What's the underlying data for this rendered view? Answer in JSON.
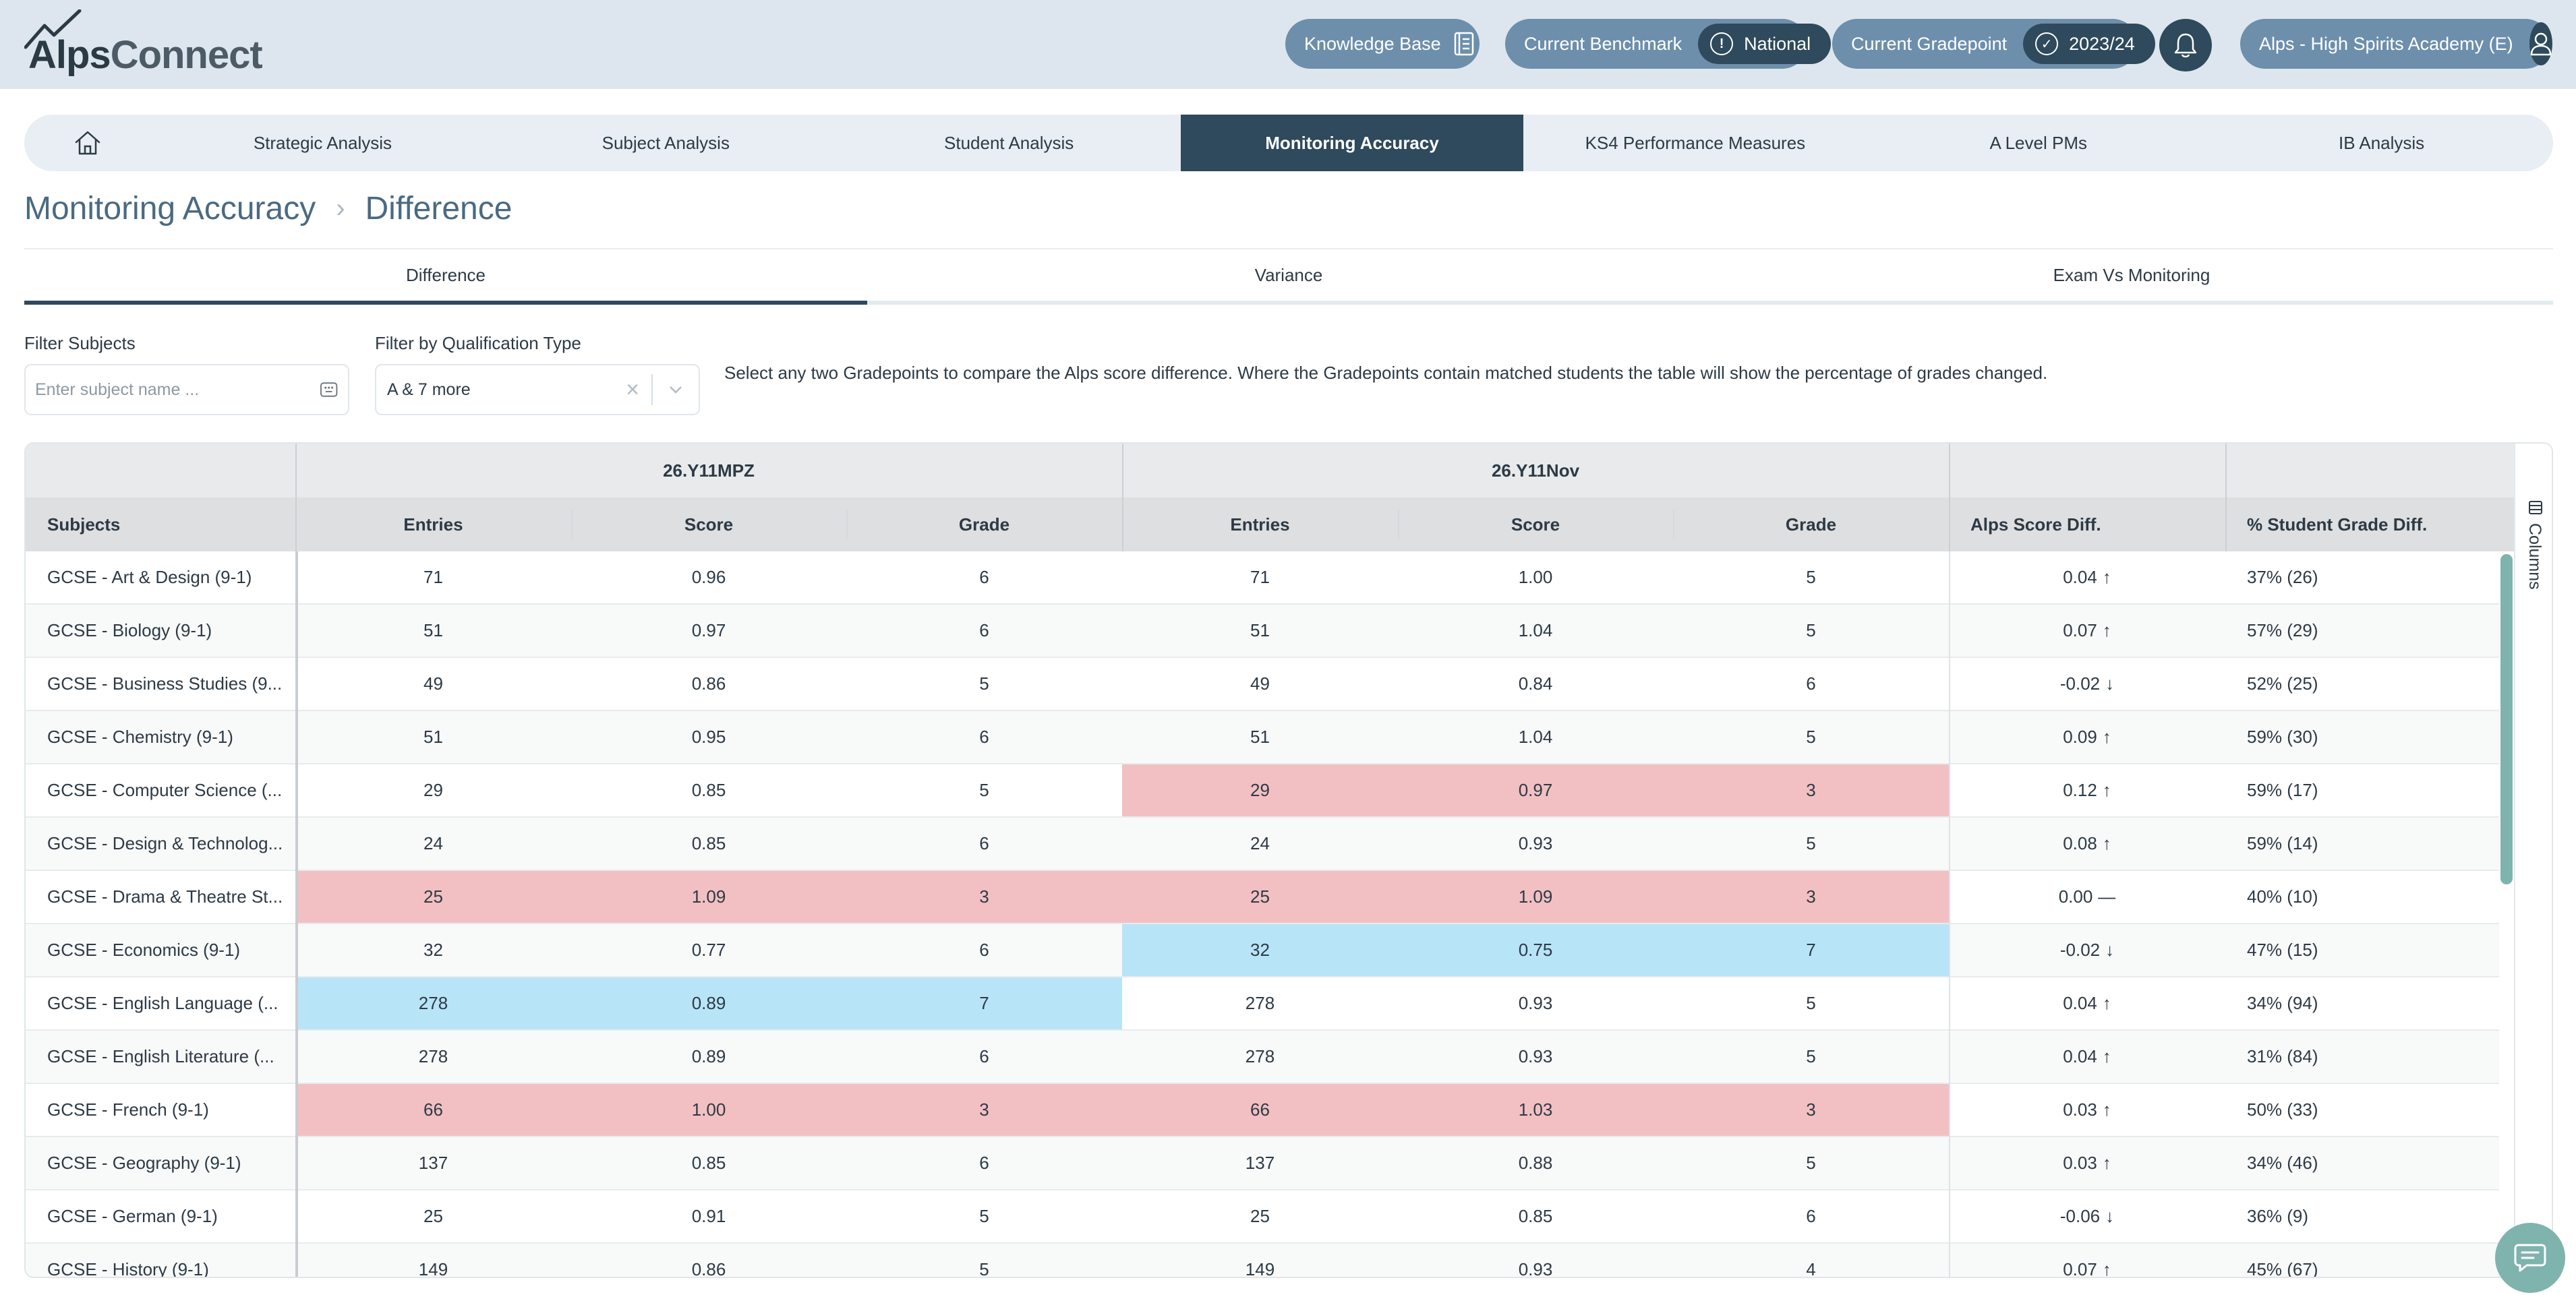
{
  "app": {
    "logo_text_a": "Alps",
    "logo_text_b": "Connect"
  },
  "header": {
    "knowledge_base": "Knowledge Base",
    "benchmark_label": "Current Benchmark",
    "benchmark_value": "National",
    "gradepoint_label": "Current Gradepoint",
    "gradepoint_value": "2023/24",
    "academy": "Alps - High Spirits Academy (E)"
  },
  "nav": {
    "items": [
      "Strategic Analysis",
      "Subject Analysis",
      "Student Analysis",
      "Monitoring Accuracy",
      "KS4 Performance Measures",
      "A Level PMs",
      "IB Analysis"
    ],
    "active": "Monitoring Accuracy"
  },
  "breadcrumb": {
    "parent": "Monitoring Accuracy",
    "current": "Difference"
  },
  "subtabs": {
    "items": [
      "Difference",
      "Variance",
      "Exam Vs Monitoring"
    ],
    "active": "Difference"
  },
  "filters": {
    "subjects_label": "Filter Subjects",
    "subjects_placeholder": "Enter subject name ...",
    "qualification_label": "Filter by Qualification Type",
    "qualification_value": "A & 7 more",
    "help_text": "Select any two Gradepoints to compare the Alps score difference. Where the Gradepoints contain matched students the table will show the percentage of grades changed."
  },
  "table": {
    "group_a": "26.Y11MPZ",
    "group_b": "26.Y11Nov",
    "columns": {
      "subjects": "Subjects",
      "entries": "Entries",
      "score": "Score",
      "grade": "Grade",
      "alps_diff": "Alps Score Diff.",
      "pct_diff": "% Student Grade Diff."
    },
    "rows": [
      {
        "subject": "GCSE - Art & Design (9-1)",
        "a_entries": "71",
        "a_score": "0.96",
        "a_grade": "6",
        "b_entries": "71",
        "b_score": "1.00",
        "b_grade": "5",
        "diff": "0.04",
        "dir": "up",
        "pct": "37% (26)",
        "a_hl": "",
        "b_hl": ""
      },
      {
        "subject": "GCSE - Biology (9-1)",
        "a_entries": "51",
        "a_score": "0.97",
        "a_grade": "6",
        "b_entries": "51",
        "b_score": "1.04",
        "b_grade": "5",
        "diff": "0.07",
        "dir": "up",
        "pct": "57% (29)",
        "a_hl": "",
        "b_hl": ""
      },
      {
        "subject": "GCSE - Business Studies (9...",
        "a_entries": "49",
        "a_score": "0.86",
        "a_grade": "5",
        "b_entries": "49",
        "b_score": "0.84",
        "b_grade": "6",
        "diff": "-0.02",
        "dir": "down",
        "pct": "52% (25)",
        "a_hl": "",
        "b_hl": ""
      },
      {
        "subject": "GCSE - Chemistry (9-1)",
        "a_entries": "51",
        "a_score": "0.95",
        "a_grade": "6",
        "b_entries": "51",
        "b_score": "1.04",
        "b_grade": "5",
        "diff": "0.09",
        "dir": "up",
        "pct": "59% (30)",
        "a_hl": "",
        "b_hl": ""
      },
      {
        "subject": "GCSE - Computer Science (...",
        "a_entries": "29",
        "a_score": "0.85",
        "a_grade": "5",
        "b_entries": "29",
        "b_score": "0.97",
        "b_grade": "3",
        "diff": "0.12",
        "dir": "up",
        "pct": "59% (17)",
        "a_hl": "",
        "b_hl": "red"
      },
      {
        "subject": "GCSE - Design & Technolog...",
        "a_entries": "24",
        "a_score": "0.85",
        "a_grade": "6",
        "b_entries": "24",
        "b_score": "0.93",
        "b_grade": "5",
        "diff": "0.08",
        "dir": "up",
        "pct": "59% (14)",
        "a_hl": "",
        "b_hl": ""
      },
      {
        "subject": "GCSE - Drama & Theatre St...",
        "a_entries": "25",
        "a_score": "1.09",
        "a_grade": "3",
        "b_entries": "25",
        "b_score": "1.09",
        "b_grade": "3",
        "diff": "0.00",
        "dir": "flat",
        "pct": "40% (10)",
        "a_hl": "red",
        "b_hl": "red"
      },
      {
        "subject": "GCSE - Economics (9-1)",
        "a_entries": "32",
        "a_score": "0.77",
        "a_grade": "6",
        "b_entries": "32",
        "b_score": "0.75",
        "b_grade": "7",
        "diff": "-0.02",
        "dir": "down",
        "pct": "47% (15)",
        "a_hl": "",
        "b_hl": "blue"
      },
      {
        "subject": "GCSE - English Language (...",
        "a_entries": "278",
        "a_score": "0.89",
        "a_grade": "7",
        "b_entries": "278",
        "b_score": "0.93",
        "b_grade": "5",
        "diff": "0.04",
        "dir": "up",
        "pct": "34% (94)",
        "a_hl": "blue",
        "b_hl": ""
      },
      {
        "subject": "GCSE - English Literature (...",
        "a_entries": "278",
        "a_score": "0.89",
        "a_grade": "6",
        "b_entries": "278",
        "b_score": "0.93",
        "b_grade": "5",
        "diff": "0.04",
        "dir": "up",
        "pct": "31% (84)",
        "a_hl": "",
        "b_hl": ""
      },
      {
        "subject": "GCSE - French (9-1)",
        "a_entries": "66",
        "a_score": "1.00",
        "a_grade": "3",
        "b_entries": "66",
        "b_score": "1.03",
        "b_grade": "3",
        "diff": "0.03",
        "dir": "up",
        "pct": "50% (33)",
        "a_hl": "red",
        "b_hl": "red"
      },
      {
        "subject": "GCSE - Geography (9-1)",
        "a_entries": "137",
        "a_score": "0.85",
        "a_grade": "6",
        "b_entries": "137",
        "b_score": "0.88",
        "b_grade": "5",
        "diff": "0.03",
        "dir": "up",
        "pct": "34% (46)",
        "a_hl": "",
        "b_hl": ""
      },
      {
        "subject": "GCSE - German (9-1)",
        "a_entries": "25",
        "a_score": "0.91",
        "a_grade": "5",
        "b_entries": "25",
        "b_score": "0.85",
        "b_grade": "6",
        "diff": "-0.06",
        "dir": "down",
        "pct": "36% (9)",
        "a_hl": "",
        "b_hl": ""
      },
      {
        "subject": "GCSE - History (9-1)",
        "a_entries": "149",
        "a_score": "0.86",
        "a_grade": "5",
        "b_entries": "149",
        "b_score": "0.93",
        "b_grade": "4",
        "diff": "0.07",
        "dir": "up",
        "pct": "45% (67)",
        "a_hl": "",
        "b_hl": ""
      }
    ]
  },
  "columns_panel_label": "Columns",
  "colors": {
    "primary": "#2e4a5c",
    "pill": "#6d8fab",
    "red_highlight": "#f2c0c3",
    "blue_highlight": "#b8e4f8",
    "accent": "#7fb3ae"
  },
  "icons": [
    "home-icon",
    "book-icon",
    "info-icon",
    "check-circle-icon",
    "bell-icon",
    "user-icon",
    "chevron-down-icon",
    "clear-icon",
    "keyboard-icon",
    "columns-icon",
    "chat-icon",
    "arrow-up-icon",
    "arrow-down-icon",
    "dash-icon"
  ]
}
